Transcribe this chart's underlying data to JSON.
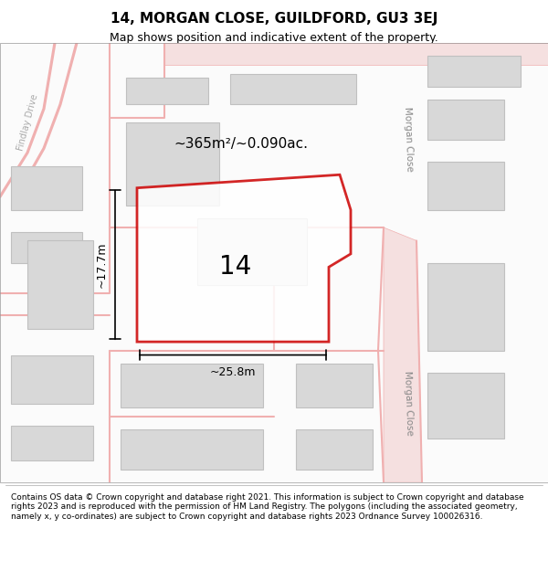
{
  "title": "14, MORGAN CLOSE, GUILDFORD, GU3 3EJ",
  "subtitle": "Map shows position and indicative extent of the property.",
  "footer": "Contains OS data © Crown copyright and database right 2021. This information is subject to Crown copyright and database rights 2023 and is reproduced with the permission of HM Land Registry. The polygons (including the associated geometry, namely x, y co-ordinates) are subject to Crown copyright and database rights 2023 Ordnance Survey 100026316.",
  "bg_color": "#f5f5f5",
  "map_bg": "#ffffff",
  "plot_outline_color": "#cc0000",
  "plot_fill_color": "#ffffff",
  "street_color": "#f0c0c0",
  "building_color": "#d8d8d8",
  "building_outline": "#c0c0c0",
  "area_text": "~365m²/~0.090ac.",
  "plot_number": "14",
  "dim_width": "~25.8m",
  "dim_height": "~17.7m",
  "street_label_1": "Morgan Close",
  "street_label_2": "Morgan Close",
  "street_label_3": "Findlay Drive"
}
